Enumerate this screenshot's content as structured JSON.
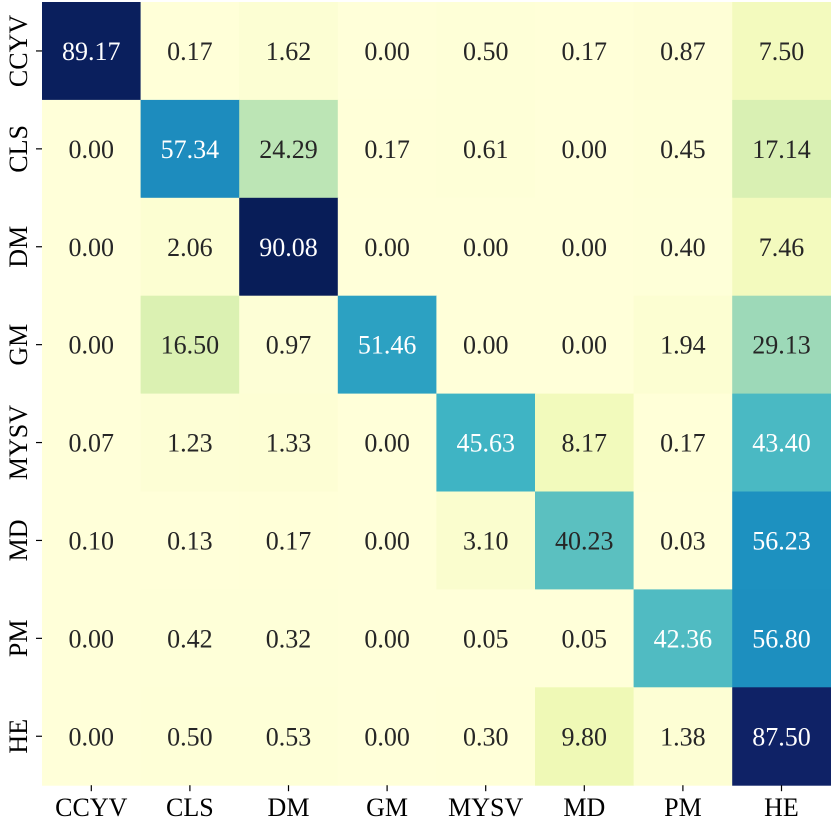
{
  "chart_data": {
    "type": "heatmap",
    "title": "",
    "xlabel": "",
    "ylabel": "",
    "x_categories": [
      "CCYV",
      "CLS",
      "DM",
      "GM",
      "MYSV",
      "MD",
      "PM",
      "HE"
    ],
    "y_categories": [
      "CCYV",
      "CLS",
      "DM",
      "GM",
      "MYSV",
      "MD",
      "PM",
      "HE"
    ],
    "values": [
      [
        89.17,
        0.17,
        1.62,
        0.0,
        0.5,
        0.17,
        0.87,
        7.5
      ],
      [
        0.0,
        57.34,
        24.29,
        0.17,
        0.61,
        0.0,
        0.45,
        17.14
      ],
      [
        0.0,
        2.06,
        90.08,
        0.0,
        0.0,
        0.0,
        0.4,
        7.46
      ],
      [
        0.0,
        16.5,
        0.97,
        51.46,
        0.0,
        0.0,
        1.94,
        29.13
      ],
      [
        0.07,
        1.23,
        1.33,
        0.0,
        45.63,
        8.17,
        0.17,
        43.4
      ],
      [
        0.1,
        0.13,
        0.17,
        0.0,
        3.1,
        40.23,
        0.03,
        56.23
      ],
      [
        0.0,
        0.42,
        0.32,
        0.0,
        0.05,
        0.05,
        42.36,
        56.8
      ],
      [
        0.0,
        0.5,
        0.53,
        0.0,
        0.3,
        9.8,
        1.38,
        87.5
      ]
    ],
    "value_range": [
      0,
      90.08
    ],
    "colormap": "YlGnBu",
    "grid": false,
    "legend": "none"
  }
}
